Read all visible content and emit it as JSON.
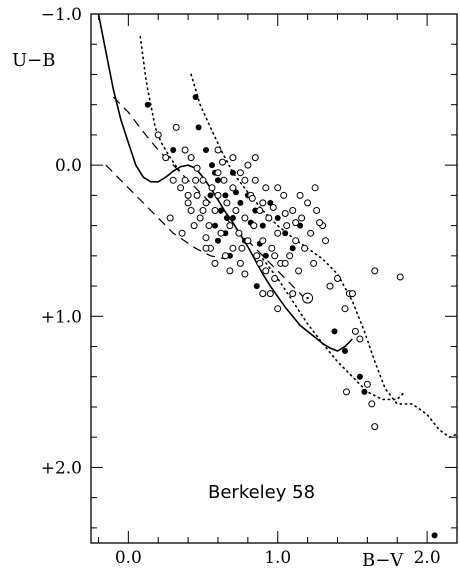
{
  "chart_data": {
    "type": "scatter",
    "title": "",
    "xlabel": "B−V",
    "ylabel": "U−B",
    "xlim": [
      -0.25,
      2.2
    ],
    "ylim": [
      2.5,
      -1.0
    ],
    "y_inverted": true,
    "grid": false,
    "x_ticks": [
      {
        "value": 0.0,
        "label": "0.0"
      },
      {
        "value": 1.0,
        "label": "1.0"
      },
      {
        "value": 2.0,
        "label": "2.0"
      }
    ],
    "y_ticks": [
      {
        "value": -1.0,
        "label": "−1.0"
      },
      {
        "value": 0.0,
        "label": "0.0"
      },
      {
        "value": 1.0,
        "label": "+1.0"
      },
      {
        "value": 2.0,
        "label": "+2.0"
      }
    ],
    "annotation": "Berkeley 58",
    "series": [
      {
        "marker": "filled-circle",
        "points": [
          [
            0.13,
            -0.4
          ],
          [
            0.3,
            -0.1
          ],
          [
            0.45,
            -0.45
          ],
          [
            0.47,
            -0.25
          ],
          [
            0.52,
            -0.1
          ],
          [
            0.56,
            0.0
          ],
          [
            0.58,
            0.05
          ],
          [
            0.6,
            0.1
          ],
          [
            0.55,
            0.2
          ],
          [
            0.62,
            0.3
          ],
          [
            0.58,
            0.4
          ],
          [
            0.65,
            0.45
          ],
          [
            0.7,
            0.35
          ],
          [
            0.75,
            0.25
          ],
          [
            0.8,
            0.2
          ],
          [
            0.85,
            0.3
          ],
          [
            0.9,
            0.4
          ],
          [
            0.78,
            0.5
          ],
          [
            0.68,
            0.6
          ],
          [
            0.6,
            0.5
          ],
          [
            0.95,
            0.25
          ],
          [
            1.0,
            0.35
          ],
          [
            1.05,
            0.45
          ],
          [
            1.1,
            0.55
          ],
          [
            0.72,
            0.18
          ],
          [
            0.82,
            0.38
          ],
          [
            0.88,
            0.52
          ],
          [
            0.92,
            0.6
          ],
          [
            0.65,
            0.2
          ],
          [
            0.7,
            0.05
          ],
          [
            1.15,
            0.4
          ],
          [
            0.66,
            0.35
          ],
          [
            0.86,
            0.8
          ],
          [
            1.38,
            1.1
          ],
          [
            1.45,
            1.23
          ],
          [
            1.55,
            1.4
          ],
          [
            1.58,
            1.5
          ],
          [
            2.05,
            2.45
          ]
        ]
      },
      {
        "marker": "open-circle",
        "points": [
          [
            0.2,
            -0.2
          ],
          [
            0.25,
            -0.05
          ],
          [
            0.3,
            0.1
          ],
          [
            0.32,
            -0.25
          ],
          [
            0.38,
            0.1
          ],
          [
            0.4,
            0.2
          ],
          [
            0.42,
            0.3
          ],
          [
            0.44,
            0.4
          ],
          [
            0.46,
            0.2
          ],
          [
            0.48,
            0.35
          ],
          [
            0.5,
            0.1
          ],
          [
            0.52,
            0.25
          ],
          [
            0.54,
            0.4
          ],
          [
            0.56,
            0.15
          ],
          [
            0.58,
            0.3
          ],
          [
            0.6,
            0.2
          ],
          [
            0.62,
            0.45
          ],
          [
            0.64,
            0.1
          ],
          [
            0.66,
            0.25
          ],
          [
            0.68,
            0.4
          ],
          [
            0.7,
            0.15
          ],
          [
            0.72,
            0.3
          ],
          [
            0.74,
            0.45
          ],
          [
            0.76,
            0.55
          ],
          [
            0.78,
            0.35
          ],
          [
            0.8,
            0.5
          ],
          [
            0.82,
            0.2
          ],
          [
            0.84,
            0.4
          ],
          [
            0.86,
            0.6
          ],
          [
            0.88,
            0.3
          ],
          [
            0.9,
            0.5
          ],
          [
            0.92,
            0.7
          ],
          [
            0.94,
            0.35
          ],
          [
            0.96,
            0.55
          ],
          [
            0.98,
            0.6
          ],
          [
            1.0,
            0.45
          ],
          [
            1.02,
            0.65
          ],
          [
            1.04,
            0.2
          ],
          [
            1.06,
            0.4
          ],
          [
            1.08,
            0.6
          ],
          [
            1.1,
            0.3
          ],
          [
            1.12,
            0.5
          ],
          [
            1.14,
            0.7
          ],
          [
            1.16,
            0.35
          ],
          [
            1.18,
            0.55
          ],
          [
            1.2,
            0.25
          ],
          [
            1.22,
            0.45
          ],
          [
            1.24,
            0.65
          ],
          [
            1.26,
            0.3
          ],
          [
            1.3,
            0.4
          ],
          [
            1.32,
            0.5
          ],
          [
            1.35,
            0.8
          ],
          [
            1.4,
            0.75
          ],
          [
            1.45,
            0.95
          ],
          [
            1.48,
            0.85
          ],
          [
            1.52,
            1.1
          ],
          [
            1.55,
            1.15
          ],
          [
            1.46,
            1.5
          ],
          [
            1.6,
            1.45
          ],
          [
            1.63,
            1.58
          ],
          [
            1.65,
            1.73
          ],
          [
            1.65,
            0.7
          ],
          [
            1.82,
            0.74
          ],
          [
            0.88,
            0.65
          ],
          [
            0.95,
            0.85
          ],
          [
            0.9,
            0.85
          ],
          [
            0.98,
            0.75
          ],
          [
            1.05,
            0.65
          ],
          [
            1.0,
            0.95
          ],
          [
            0.75,
            0.65
          ],
          [
            0.7,
            0.55
          ],
          [
            0.65,
            0.6
          ],
          [
            0.55,
            0.55
          ],
          [
            0.52,
            0.48
          ],
          [
            0.5,
            0.3
          ],
          [
            0.45,
            0.1
          ],
          [
            0.4,
            0.25
          ],
          [
            0.35,
            0.15
          ],
          [
            0.42,
            -0.05
          ],
          [
            0.6,
            0.05
          ],
          [
            0.7,
            -0.05
          ],
          [
            0.75,
            0.05
          ],
          [
            0.85,
            0.1
          ],
          [
            0.92,
            0.15
          ],
          [
            1.0,
            0.15
          ],
          [
            1.15,
            0.2
          ],
          [
            1.25,
            0.15
          ],
          [
            1.28,
            0.38
          ],
          [
            1.1,
            0.85
          ],
          [
            1.5,
            0.85
          ],
          [
            0.8,
            0.0
          ],
          [
            0.85,
            -0.05
          ],
          [
            0.6,
            -0.1
          ],
          [
            0.63,
            -0.02
          ],
          [
            0.78,
            0.1
          ],
          [
            0.83,
            0.22
          ],
          [
            0.9,
            0.25
          ],
          [
            0.97,
            0.28
          ],
          [
            1.05,
            0.32
          ],
          [
            1.12,
            0.38
          ],
          [
            0.36,
            0.45
          ],
          [
            0.28,
            0.35
          ],
          [
            0.38,
            -0.1
          ],
          [
            0.46,
            0.02
          ],
          [
            0.52,
            0.55
          ],
          [
            0.58,
            0.65
          ],
          [
            0.68,
            0.7
          ],
          [
            0.78,
            0.72
          ],
          [
            1.2,
            0.87
          ]
        ]
      },
      {
        "marker": "dotted-circle",
        "points": [
          [
            1.2,
            0.88
          ]
        ]
      }
    ],
    "curves": [
      {
        "style": "solid",
        "points": [
          [
            -0.2,
            -1.0
          ],
          [
            -0.15,
            -0.75
          ],
          [
            -0.1,
            -0.5
          ],
          [
            -0.05,
            -0.3
          ],
          [
            0.0,
            -0.15
          ],
          [
            0.05,
            0.0
          ],
          [
            0.1,
            0.08
          ],
          [
            0.15,
            0.11
          ],
          [
            0.2,
            0.11
          ],
          [
            0.25,
            0.08
          ],
          [
            0.3,
            0.04
          ],
          [
            0.35,
            0.01
          ],
          [
            0.4,
            0.0
          ],
          [
            0.45,
            0.02
          ],
          [
            0.5,
            0.08
          ],
          [
            0.55,
            0.15
          ],
          [
            0.6,
            0.23
          ],
          [
            0.65,
            0.31
          ],
          [
            0.7,
            0.38
          ],
          [
            0.75,
            0.46
          ],
          [
            0.8,
            0.54
          ],
          [
            0.85,
            0.63
          ],
          [
            0.9,
            0.72
          ],
          [
            0.95,
            0.8
          ],
          [
            1.0,
            0.87
          ],
          [
            1.05,
            0.94
          ],
          [
            1.1,
            1.0
          ],
          [
            1.15,
            1.06
          ],
          [
            1.2,
            1.1
          ],
          [
            1.25,
            1.14
          ],
          [
            1.3,
            1.18
          ],
          [
            1.35,
            1.21
          ],
          [
            1.4,
            1.23
          ],
          [
            1.45,
            1.2
          ],
          [
            1.5,
            1.15
          ]
        ]
      },
      {
        "style": "dashed",
        "points": [
          [
            -0.1,
            -0.45
          ],
          [
            0.0,
            -0.35
          ],
          [
            0.1,
            -0.22
          ],
          [
            0.2,
            -0.1
          ],
          [
            0.3,
            0.0
          ],
          [
            0.4,
            0.1
          ],
          [
            0.5,
            0.2
          ],
          [
            0.6,
            0.3
          ],
          [
            0.7,
            0.4
          ],
          [
            0.8,
            0.5
          ],
          [
            0.9,
            0.6
          ],
          [
            1.0,
            0.7
          ],
          [
            1.1,
            0.8
          ],
          [
            1.2,
            0.9
          ]
        ]
      },
      {
        "style": "dashed",
        "points": [
          [
            -0.15,
            0.0
          ],
          [
            0.0,
            0.15
          ],
          [
            0.15,
            0.3
          ],
          [
            0.3,
            0.45
          ],
          [
            0.45,
            0.55
          ],
          [
            0.55,
            0.6
          ],
          [
            0.65,
            0.62
          ]
        ]
      },
      {
        "style": "dotted",
        "points": [
          [
            0.08,
            -0.85
          ],
          [
            0.1,
            -0.7
          ],
          [
            0.12,
            -0.55
          ],
          [
            0.15,
            -0.4
          ],
          [
            0.18,
            -0.25
          ],
          [
            0.22,
            -0.15
          ],
          [
            0.28,
            -0.05
          ],
          [
            0.35,
            0.05
          ]
        ]
      },
      {
        "style": "dotted",
        "points": [
          [
            0.42,
            -0.6
          ],
          [
            0.48,
            -0.4
          ],
          [
            0.55,
            -0.25
          ],
          [
            0.62,
            -0.1
          ],
          [
            0.7,
            0.05
          ],
          [
            0.8,
            0.18
          ],
          [
            0.9,
            0.3
          ],
          [
            1.0,
            0.4
          ],
          [
            1.1,
            0.48
          ],
          [
            1.2,
            0.55
          ],
          [
            1.3,
            0.62
          ],
          [
            1.4,
            0.72
          ],
          [
            1.5,
            0.9
          ],
          [
            1.58,
            1.1
          ],
          [
            1.65,
            1.3
          ],
          [
            1.72,
            1.48
          ],
          [
            1.8,
            1.58
          ],
          [
            1.9,
            1.58
          ],
          [
            2.0,
            1.65
          ],
          [
            2.08,
            1.75
          ],
          [
            2.15,
            1.8
          ],
          [
            2.2,
            1.78
          ]
        ]
      },
      {
        "style": "dotted",
        "points": [
          [
            0.9,
            0.62
          ],
          [
            1.0,
            0.75
          ],
          [
            1.1,
            0.9
          ],
          [
            1.2,
            1.05
          ],
          [
            1.3,
            1.18
          ],
          [
            1.4,
            1.3
          ],
          [
            1.5,
            1.4
          ],
          [
            1.6,
            1.5
          ],
          [
            1.7,
            1.55
          ],
          [
            1.8,
            1.55
          ],
          [
            1.85,
            1.5
          ]
        ]
      }
    ]
  }
}
